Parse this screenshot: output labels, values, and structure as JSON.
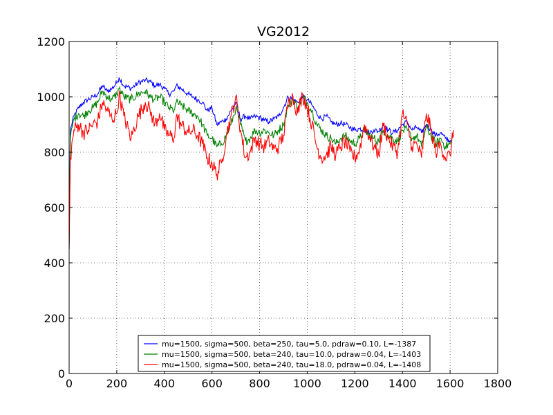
{
  "chart_data": {
    "type": "line",
    "title": "VG2012",
    "xlabel": "",
    "ylabel": "",
    "xlim": [
      0,
      1800
    ],
    "ylim": [
      0,
      1200
    ],
    "xticks": [
      0,
      200,
      400,
      600,
      800,
      1000,
      1200,
      1400,
      1600,
      1800
    ],
    "yticks": [
      0,
      200,
      400,
      600,
      800,
      1000,
      1200
    ],
    "xtick_labels": [
      "0",
      "200",
      "400",
      "600",
      "800",
      "1000",
      "1200",
      "1400",
      "1600",
      "1800"
    ],
    "ytick_labels": [
      "0",
      "200",
      "400",
      "600",
      "800",
      "1000",
      "1200"
    ],
    "grid": true,
    "legend_position": "bottom-center",
    "series": [
      {
        "name": "mu=1500, sigma=500, beta=250, tau=5.0, pdraw=0.10, L=-1387",
        "color": "#0000ff",
        "x": [
          0,
          5,
          20,
          40,
          60,
          80,
          100,
          120,
          140,
          160,
          180,
          200,
          210,
          230,
          260,
          290,
          320,
          340,
          360,
          380,
          400,
          420,
          440,
          450,
          470,
          500,
          520,
          540,
          560,
          580,
          600,
          620,
          640,
          660,
          680,
          700,
          720,
          740,
          760,
          780,
          800,
          820,
          840,
          860,
          880,
          900,
          920,
          940,
          960,
          980,
          1000,
          1020,
          1040,
          1060,
          1080,
          1100,
          1120,
          1140,
          1160,
          1180,
          1200,
          1220,
          1240,
          1260,
          1280,
          1300,
          1320,
          1340,
          1360,
          1380,
          1400,
          1420,
          1440,
          1460,
          1480,
          1500,
          1520,
          1540,
          1560,
          1580,
          1600,
          1615
        ],
        "y": [
          450,
          880,
          930,
          960,
          980,
          990,
          1000,
          1010,
          1040,
          1020,
          1030,
          1050,
          1070,
          1040,
          1030,
          1050,
          1060,
          1055,
          1040,
          1045,
          1030,
          1010,
          1020,
          1040,
          1030,
          1010,
          1000,
          990,
          980,
          950,
          960,
          900,
          910,
          920,
          950,
          980,
          920,
          930,
          920,
          930,
          925,
          915,
          910,
          920,
          930,
          960,
          1000,
          990,
          980,
          1000,
          990,
          970,
          940,
          920,
          930,
          910,
          900,
          905,
          900,
          890,
          880,
          885,
          880,
          870,
          880,
          875,
          900,
          880,
          870,
          880,
          900,
          910,
          880,
          890,
          870,
          900,
          880,
          860,
          870,
          850,
          840,
          860
        ]
      },
      {
        "name": "mu=1500, sigma=500, beta=240, tau=10.0, pdraw=0.04, L=-1403",
        "color": "#008000",
        "x": [
          0,
          5,
          20,
          40,
          60,
          80,
          100,
          120,
          140,
          160,
          180,
          200,
          210,
          230,
          260,
          290,
          320,
          340,
          360,
          380,
          400,
          420,
          440,
          450,
          470,
          500,
          520,
          540,
          560,
          580,
          600,
          620,
          640,
          660,
          680,
          700,
          720,
          740,
          760,
          780,
          800,
          820,
          840,
          860,
          880,
          900,
          920,
          940,
          960,
          980,
          1000,
          1020,
          1040,
          1060,
          1080,
          1100,
          1120,
          1140,
          1160,
          1180,
          1200,
          1220,
          1240,
          1260,
          1280,
          1300,
          1320,
          1340,
          1360,
          1380,
          1400,
          1420,
          1440,
          1460,
          1480,
          1500,
          1520,
          1540,
          1560,
          1580,
          1600,
          1615
        ],
        "y": [
          450,
          850,
          920,
          940,
          930,
          950,
          960,
          980,
          1020,
          1000,
          990,
          1010,
          1030,
          1000,
          990,
          1010,
          1020,
          1000,
          990,
          1000,
          980,
          960,
          950,
          980,
          970,
          950,
          940,
          930,
          900,
          860,
          850,
          820,
          830,
          860,
          900,
          960,
          900,
          840,
          850,
          880,
          870,
          880,
          870,
          860,
          880,
          900,
          970,
          990,
          960,
          1000,
          980,
          950,
          900,
          880,
          860,
          850,
          830,
          850,
          860,
          840,
          830,
          850,
          880,
          860,
          850,
          840,
          880,
          860,
          850,
          840,
          880,
          880,
          850,
          860,
          820,
          890,
          860,
          830,
          850,
          820,
          830,
          860
        ]
      },
      {
        "name": "mu=1500, sigma=500, beta=240, tau=18.0, pdraw=0.04, L=-1408",
        "color": "#ff0000",
        "x": [
          0,
          5,
          20,
          40,
          60,
          80,
          100,
          120,
          140,
          160,
          180,
          200,
          210,
          230,
          260,
          290,
          320,
          340,
          360,
          380,
          400,
          420,
          440,
          450,
          470,
          500,
          520,
          540,
          560,
          580,
          600,
          620,
          640,
          660,
          680,
          700,
          720,
          740,
          760,
          780,
          800,
          820,
          840,
          860,
          880,
          900,
          920,
          940,
          960,
          980,
          1000,
          1020,
          1040,
          1060,
          1080,
          1100,
          1120,
          1140,
          1160,
          1180,
          1200,
          1220,
          1240,
          1260,
          1280,
          1300,
          1320,
          1340,
          1360,
          1380,
          1400,
          1420,
          1440,
          1460,
          1480,
          1500,
          1520,
          1540,
          1560,
          1580,
          1600,
          1615
        ],
        "y": [
          450,
          780,
          880,
          900,
          870,
          880,
          900,
          910,
          980,
          950,
          920,
          940,
          1010,
          930,
          850,
          930,
          980,
          950,
          900,
          940,
          880,
          860,
          850,
          930,
          900,
          870,
          880,
          860,
          830,
          780,
          760,
          720,
          760,
          860,
          930,
          1000,
          880,
          780,
          800,
          850,
          830,
          820,
          840,
          810,
          820,
          860,
          980,
          1000,
          940,
          1010,
          960,
          900,
          820,
          780,
          790,
          820,
          790,
          820,
          840,
          800,
          780,
          810,
          900,
          860,
          820,
          790,
          900,
          850,
          820,
          800,
          940,
          900,
          820,
          830,
          780,
          940,
          880,
          800,
          830,
          780,
          790,
          880
        ]
      }
    ]
  }
}
